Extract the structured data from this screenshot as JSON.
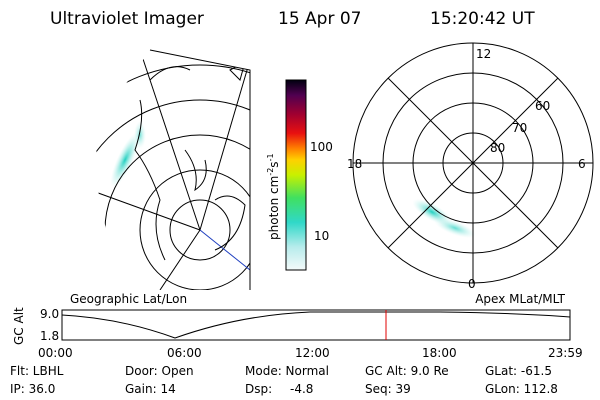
{
  "header": {
    "title": "Ultraviolet Imager",
    "date": "15 Apr 07",
    "time": "15:20:42 UT"
  },
  "colorbar": {
    "label": {
      "unit": "photon cm",
      "exp1": "-2",
      "unit2": "s",
      "exp2": "-1"
    },
    "ticks": [
      "100",
      "10"
    ]
  },
  "polar_plot": {
    "mlt_labels": [
      "12",
      "6",
      "0",
      "18"
    ],
    "lat_labels": [
      "60",
      "70",
      "80"
    ]
  },
  "maps": {
    "left_caption": "Geographic Lat/Lon",
    "right_caption": "Apex MLat/MLT"
  },
  "timeline": {
    "axis_label": "GC Alt",
    "y_labels": [
      "9.0",
      "1.8"
    ],
    "times": [
      "00:00",
      "06:00",
      "12:00",
      "18:00",
      "23:59"
    ]
  },
  "footer": {
    "flt": "Flt: LBHL",
    "ip": "IP: 36.0",
    "door": "Door: Open",
    "gain": "Gain: 14",
    "mode": "Mode: Normal",
    "dsp_label": "Dsp:",
    "dsp_value": "-4.8",
    "gc_alt": "GC Alt: 9.0 Re",
    "seq": "Seq: 39",
    "glat": "GLat: -61.5",
    "glon": "GLon: 112.8"
  }
}
